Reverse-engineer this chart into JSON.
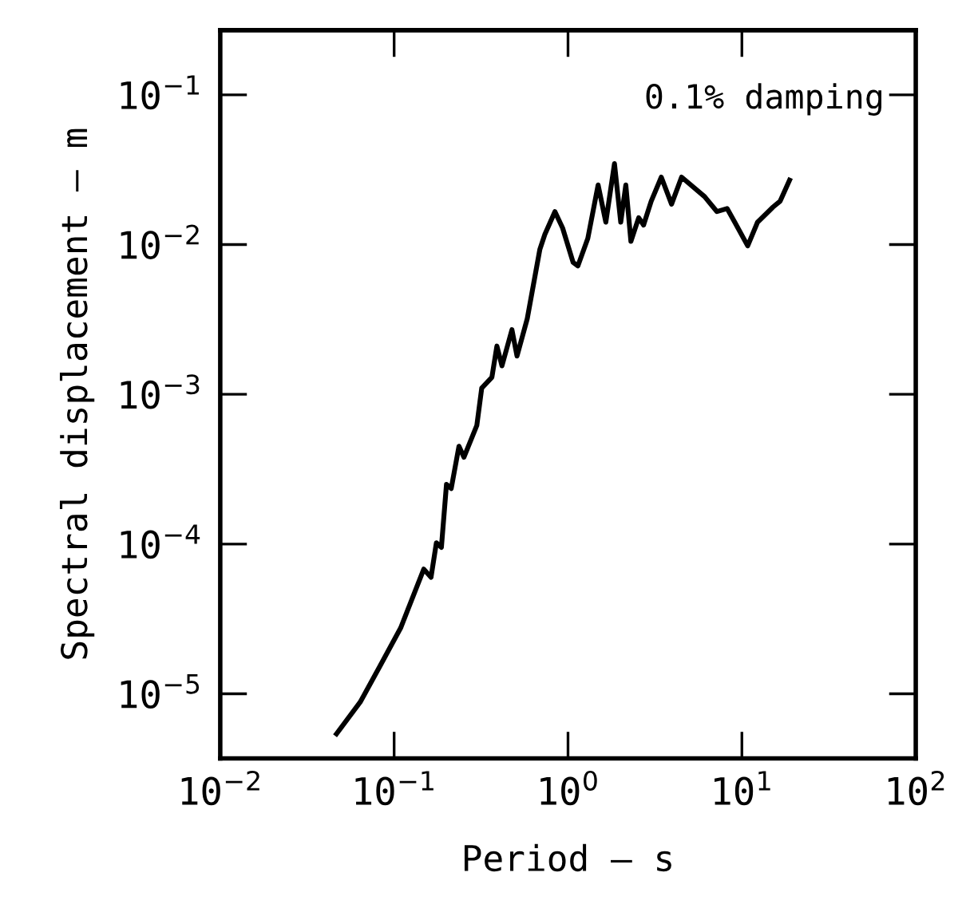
{
  "chart_data": {
    "type": "line",
    "xlabel": "Period — s",
    "ylabel": "Spectral displacement — m",
    "annotations": [
      "0.1% damping"
    ],
    "log": "xy",
    "grid": false,
    "marker": "none",
    "line_style": "solid",
    "xlim": [
      0.01,
      100
    ],
    "ylim": [
      3.7e-06,
      0.27
    ],
    "xticks": [
      {
        "value": 0.01,
        "label": "10$^{−2}$"
      },
      {
        "value": 0.1,
        "label": "10$^{−1}$"
      },
      {
        "value": 1,
        "label": "10$^{0}$"
      },
      {
        "value": 10,
        "label": "10$^{1}$"
      },
      {
        "value": 100,
        "label": "10$^{2}$"
      }
    ],
    "yticks": [
      {
        "value": 1e-05,
        "label": "10$^{−5}$"
      },
      {
        "value": 0.0001,
        "label": "10$^{−4}$"
      },
      {
        "value": 0.001,
        "label": "10$^{−3}$"
      },
      {
        "value": 0.01,
        "label": "10$^{−2}$"
      },
      {
        "value": 0.1,
        "label": "10$^{−1}$"
      }
    ],
    "series": [
      {
        "color": "#000000",
        "x": [
          0.0466,
          0.0638,
          0.0834,
          0.109,
          0.148,
          0.163,
          0.175,
          0.187,
          0.2,
          0.213,
          0.236,
          0.252,
          0.299,
          0.319,
          0.365,
          0.39,
          0.417,
          0.476,
          0.509,
          0.583,
          0.689,
          0.736,
          0.841,
          0.931,
          1.07,
          1.14,
          1.3,
          1.49,
          1.65,
          1.85,
          2.01,
          2.15,
          2.3,
          2.55,
          2.72,
          3.01,
          3.44,
          3.94,
          4.5,
          6.1,
          7.19,
          8.22,
          9.1,
          10.8,
          12.3,
          13.6,
          15.1,
          16.6,
          18.8
        ],
        "values": [
          5.4e-06,
          8.8e-06,
          1.55e-05,
          2.75e-05,
          6.8e-05,
          6e-05,
          0.000102,
          9.5e-05,
          0.00025,
          0.000235,
          0.00045,
          0.00038,
          0.00062,
          0.0011,
          0.0013,
          0.0021,
          0.00155,
          0.0027,
          0.0018,
          0.0032,
          0.0093,
          0.0117,
          0.0166,
          0.0129,
          0.0076,
          0.0072,
          0.011,
          0.025,
          0.0141,
          0.0347,
          0.0141,
          0.025,
          0.0105,
          0.0151,
          0.0135,
          0.0195,
          0.0282,
          0.0186,
          0.0282,
          0.0209,
          0.0166,
          0.0174,
          0.0141,
          0.0098,
          0.0141,
          0.0158,
          0.0178,
          0.0195,
          0.0269
        ]
      }
    ]
  }
}
